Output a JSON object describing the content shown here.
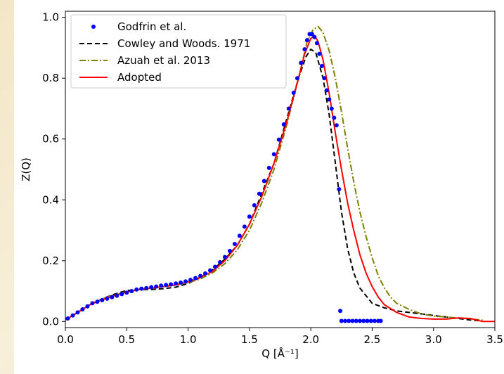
{
  "chart_data": {
    "type": "line",
    "title": "",
    "xlabel": "Q [Å⁻¹]",
    "ylabel": "Z(Q)",
    "xlim": [
      0.0,
      3.5
    ],
    "ylim": [
      -0.02,
      1.02
    ],
    "xticks": [
      "0.0",
      "0.5",
      "1.0",
      "1.5",
      "2.0",
      "2.5",
      "3.0",
      "3.5"
    ],
    "yticks": [
      "0.0",
      "0.2",
      "0.4",
      "0.6",
      "0.8",
      "1.0"
    ],
    "grid": false,
    "legend_position": "top-left",
    "series": [
      {
        "name": "Godfrin et al.",
        "style": "scatter",
        "color": "#0000ff",
        "points": [
          [
            0.02,
            0.01
          ],
          [
            0.06,
            0.02
          ],
          [
            0.1,
            0.03
          ],
          [
            0.14,
            0.04
          ],
          [
            0.18,
            0.05
          ],
          [
            0.22,
            0.06
          ],
          [
            0.26,
            0.065
          ],
          [
            0.3,
            0.07
          ],
          [
            0.34,
            0.075
          ],
          [
            0.38,
            0.08
          ],
          [
            0.42,
            0.085
          ],
          [
            0.46,
            0.09
          ],
          [
            0.5,
            0.095
          ],
          [
            0.54,
            0.1
          ],
          [
            0.58,
            0.105
          ],
          [
            0.62,
            0.108
          ],
          [
            0.66,
            0.11
          ],
          [
            0.7,
            0.113
          ],
          [
            0.74,
            0.115
          ],
          [
            0.78,
            0.118
          ],
          [
            0.82,
            0.12
          ],
          [
            0.86,
            0.122
          ],
          [
            0.9,
            0.125
          ],
          [
            0.94,
            0.128
          ],
          [
            0.98,
            0.132
          ],
          [
            1.02,
            0.137
          ],
          [
            1.06,
            0.143
          ],
          [
            1.1,
            0.15
          ],
          [
            1.14,
            0.158
          ],
          [
            1.18,
            0.168
          ],
          [
            1.22,
            0.18
          ],
          [
            1.26,
            0.195
          ],
          [
            1.3,
            0.212
          ],
          [
            1.34,
            0.232
          ],
          [
            1.38,
            0.255
          ],
          [
            1.42,
            0.282
          ],
          [
            1.46,
            0.312
          ],
          [
            1.5,
            0.345
          ],
          [
            1.54,
            0.382
          ],
          [
            1.58,
            0.42
          ],
          [
            1.62,
            0.462
          ],
          [
            1.66,
            0.505
          ],
          [
            1.7,
            0.55
          ],
          [
            1.74,
            0.598
          ],
          [
            1.78,
            0.648
          ],
          [
            1.82,
            0.7
          ],
          [
            1.86,
            0.752
          ],
          [
            1.89,
            0.8
          ],
          [
            1.92,
            0.85
          ],
          [
            1.95,
            0.895
          ],
          [
            1.97,
            0.925
          ],
          [
            1.99,
            0.945
          ],
          [
            2.01,
            0.945
          ],
          [
            2.03,
            0.935
          ],
          [
            2.05,
            0.915
          ],
          [
            2.07,
            0.88
          ],
          [
            2.09,
            0.84
          ],
          [
            2.11,
            0.8
          ],
          [
            2.13,
            0.76
          ],
          [
            2.15,
            0.73
          ],
          [
            2.17,
            0.7
          ],
          [
            2.19,
            0.67
          ],
          [
            2.21,
            0.645
          ],
          [
            2.23,
            0.435
          ],
          [
            2.24,
            0.035
          ],
          [
            2.25,
            0.002
          ],
          [
            2.28,
            0.002
          ],
          [
            2.31,
            0.002
          ],
          [
            2.34,
            0.002
          ],
          [
            2.37,
            0.002
          ],
          [
            2.4,
            0.002
          ],
          [
            2.43,
            0.002
          ],
          [
            2.46,
            0.002
          ],
          [
            2.49,
            0.002
          ],
          [
            2.52,
            0.002
          ],
          [
            2.55,
            0.002
          ],
          [
            2.57,
            0.002
          ]
        ]
      },
      {
        "name": "Cowley and Woods. 1971",
        "style": "dashed",
        "color": "#000000",
        "points": [
          [
            0.0,
            0.005
          ],
          [
            0.1,
            0.03
          ],
          [
            0.2,
            0.055
          ],
          [
            0.3,
            0.075
          ],
          [
            0.4,
            0.09
          ],
          [
            0.5,
            0.102
          ],
          [
            0.6,
            0.105
          ],
          [
            0.7,
            0.105
          ],
          [
            0.8,
            0.108
          ],
          [
            0.9,
            0.113
          ],
          [
            1.0,
            0.125
          ],
          [
            1.1,
            0.145
          ],
          [
            1.2,
            0.17
          ],
          [
            1.3,
            0.205
          ],
          [
            1.4,
            0.25
          ],
          [
            1.5,
            0.32
          ],
          [
            1.6,
            0.42
          ],
          [
            1.7,
            0.52
          ],
          [
            1.8,
            0.66
          ],
          [
            1.9,
            0.8
          ],
          [
            1.96,
            0.87
          ],
          [
            2.0,
            0.895
          ],
          [
            2.04,
            0.885
          ],
          [
            2.1,
            0.8
          ],
          [
            2.15,
            0.68
          ],
          [
            2.2,
            0.52
          ],
          [
            2.25,
            0.36
          ],
          [
            2.3,
            0.24
          ],
          [
            2.35,
            0.16
          ],
          [
            2.4,
            0.11
          ],
          [
            2.5,
            0.06
          ],
          [
            2.6,
            0.045
          ],
          [
            2.7,
            0.035
          ],
          [
            2.8,
            0.03
          ],
          [
            2.9,
            0.025
          ],
          [
            3.0,
            0.02
          ],
          [
            3.1,
            0.015
          ],
          [
            3.2,
            0.01
          ],
          [
            3.3,
            0.005
          ],
          [
            3.4,
            0.002
          ]
        ]
      },
      {
        "name": "Azuah et al. 2013",
        "style": "dashdot",
        "color": "#808000",
        "points": [
          [
            0.0,
            0.005
          ],
          [
            0.1,
            0.03
          ],
          [
            0.2,
            0.055
          ],
          [
            0.3,
            0.075
          ],
          [
            0.4,
            0.088
          ],
          [
            0.5,
            0.098
          ],
          [
            0.6,
            0.105
          ],
          [
            0.7,
            0.11
          ],
          [
            0.8,
            0.115
          ],
          [
            0.9,
            0.12
          ],
          [
            1.0,
            0.128
          ],
          [
            1.1,
            0.14
          ],
          [
            1.2,
            0.16
          ],
          [
            1.3,
            0.19
          ],
          [
            1.4,
            0.235
          ],
          [
            1.5,
            0.3
          ],
          [
            1.6,
            0.39
          ],
          [
            1.7,
            0.5
          ],
          [
            1.8,
            0.64
          ],
          [
            1.9,
            0.8
          ],
          [
            1.97,
            0.92
          ],
          [
            2.02,
            0.96
          ],
          [
            2.06,
            0.97
          ],
          [
            2.1,
            0.95
          ],
          [
            2.15,
            0.89
          ],
          [
            2.2,
            0.8
          ],
          [
            2.25,
            0.69
          ],
          [
            2.3,
            0.57
          ],
          [
            2.35,
            0.46
          ],
          [
            2.4,
            0.36
          ],
          [
            2.45,
            0.28
          ],
          [
            2.5,
            0.21
          ],
          [
            2.55,
            0.15
          ],
          [
            2.6,
            0.11
          ],
          [
            2.65,
            0.08
          ],
          [
            2.7,
            0.06
          ],
          [
            2.8,
            0.04
          ],
          [
            2.9,
            0.025
          ],
          [
            3.0,
            0.018
          ],
          [
            3.2,
            0.012
          ],
          [
            3.4,
            0.005
          ]
        ]
      },
      {
        "name": "Adopted",
        "style": "solid",
        "color": "#ff0000",
        "points": [
          [
            0.0,
            0.005
          ],
          [
            0.1,
            0.03
          ],
          [
            0.2,
            0.055
          ],
          [
            0.3,
            0.072
          ],
          [
            0.4,
            0.085
          ],
          [
            0.5,
            0.097
          ],
          [
            0.6,
            0.105
          ],
          [
            0.7,
            0.11
          ],
          [
            0.8,
            0.115
          ],
          [
            0.9,
            0.12
          ],
          [
            1.0,
            0.13
          ],
          [
            1.1,
            0.145
          ],
          [
            1.2,
            0.165
          ],
          [
            1.3,
            0.2
          ],
          [
            1.4,
            0.25
          ],
          [
            1.5,
            0.32
          ],
          [
            1.6,
            0.41
          ],
          [
            1.7,
            0.52
          ],
          [
            1.8,
            0.65
          ],
          [
            1.9,
            0.8
          ],
          [
            1.95,
            0.88
          ],
          [
            2.0,
            0.93
          ],
          [
            2.03,
            0.94
          ],
          [
            2.06,
            0.92
          ],
          [
            2.1,
            0.86
          ],
          [
            2.15,
            0.75
          ],
          [
            2.2,
            0.62
          ],
          [
            2.25,
            0.5
          ],
          [
            2.3,
            0.39
          ],
          [
            2.35,
            0.3
          ],
          [
            2.4,
            0.22
          ],
          [
            2.45,
            0.16
          ],
          [
            2.5,
            0.115
          ],
          [
            2.55,
            0.08
          ],
          [
            2.6,
            0.055
          ],
          [
            2.7,
            0.03
          ],
          [
            2.8,
            0.015
          ],
          [
            2.9,
            0.01
          ],
          [
            3.0,
            0.008
          ],
          [
            3.1,
            0.008
          ],
          [
            3.2,
            0.012
          ],
          [
            3.3,
            0.01
          ],
          [
            3.4,
            0.0
          ],
          [
            3.5,
            0.0
          ]
        ]
      }
    ]
  }
}
